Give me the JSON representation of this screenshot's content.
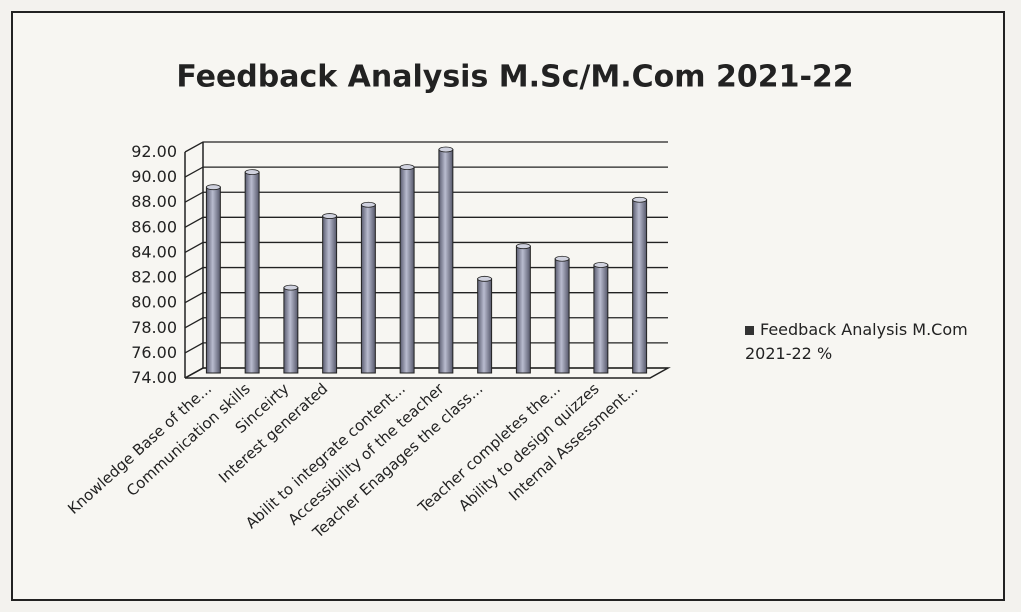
{
  "chart_data": {
    "type": "bar",
    "title": "Feedback Analysis M.Sc/M.Com 2021-22",
    "categories": [
      "Knowledge Base of the...",
      "Communication skills",
      "Sinceirty",
      "Interest generated",
      null,
      "Abilit to integrate content...",
      "Accessibility of the teacher",
      "Teacher Enagages the class...",
      null,
      "Teacher completes the...",
      "Ability to design quizzes",
      "Internal Assessment..."
    ],
    "series": [
      {
        "name": "Feedback Analysis M.Com 2021-22 %",
        "color": "#8c8fa6",
        "values": [
          88.8,
          90.0,
          80.8,
          86.5,
          87.4,
          90.4,
          91.8,
          81.5,
          84.1,
          83.1,
          82.6,
          87.8
        ]
      }
    ],
    "ylim": [
      74,
      92
    ],
    "yticks": [
      {
        "value": 74,
        "label": "74.00"
      },
      {
        "value": 76,
        "label": "76.00"
      },
      {
        "value": 78,
        "label": "78.00"
      },
      {
        "value": 80,
        "label": "80.00"
      },
      {
        "value": 82,
        "label": "82.00"
      },
      {
        "value": 84,
        "label": "84.00"
      },
      {
        "value": 86,
        "label": "86.00"
      },
      {
        "value": 88,
        "label": "88.00"
      },
      {
        "value": 90,
        "label": "90.00"
      },
      {
        "value": 92,
        "label": "92.00"
      }
    ],
    "grid": true,
    "legend": "right"
  }
}
